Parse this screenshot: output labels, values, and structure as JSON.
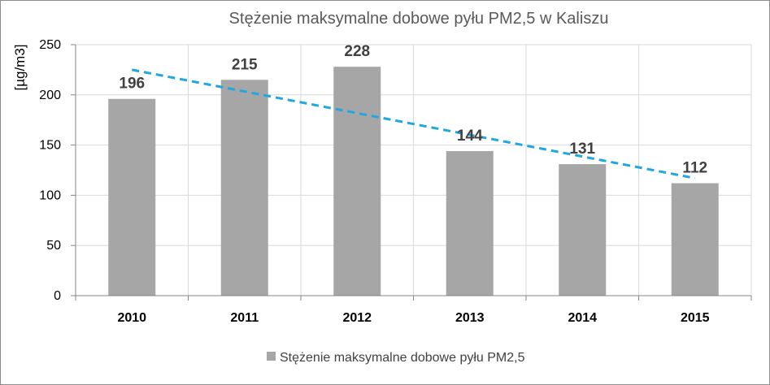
{
  "chart_data": {
    "type": "bar",
    "title": "Stężenie maksymalne dobowe pyłu PM2,5 w  Kaliszu",
    "xlabel": "",
    "ylabel": "[µg/m3]",
    "categories": [
      "2010",
      "2011",
      "2012",
      "2013",
      "2014",
      "2015"
    ],
    "series": [
      {
        "name": "Stężenie maksymalne dobowe pyłu PM2,5",
        "values": [
          196,
          215,
          228,
          144,
          131,
          112
        ],
        "color": "#a6a6a6"
      }
    ],
    "data_labels": [
      "196",
      "215",
      "228",
      "144",
      "131",
      "112"
    ],
    "yticks": [
      0,
      50,
      100,
      150,
      200,
      250
    ],
    "ylim": [
      0,
      250
    ],
    "grid": true,
    "trendline": {
      "type": "linear",
      "color": "#1fa7e0",
      "style": "dashed"
    },
    "legend_position": "bottom",
    "legend": [
      "Stężenie maksymalne dobowe pyłu PM2,5"
    ]
  }
}
